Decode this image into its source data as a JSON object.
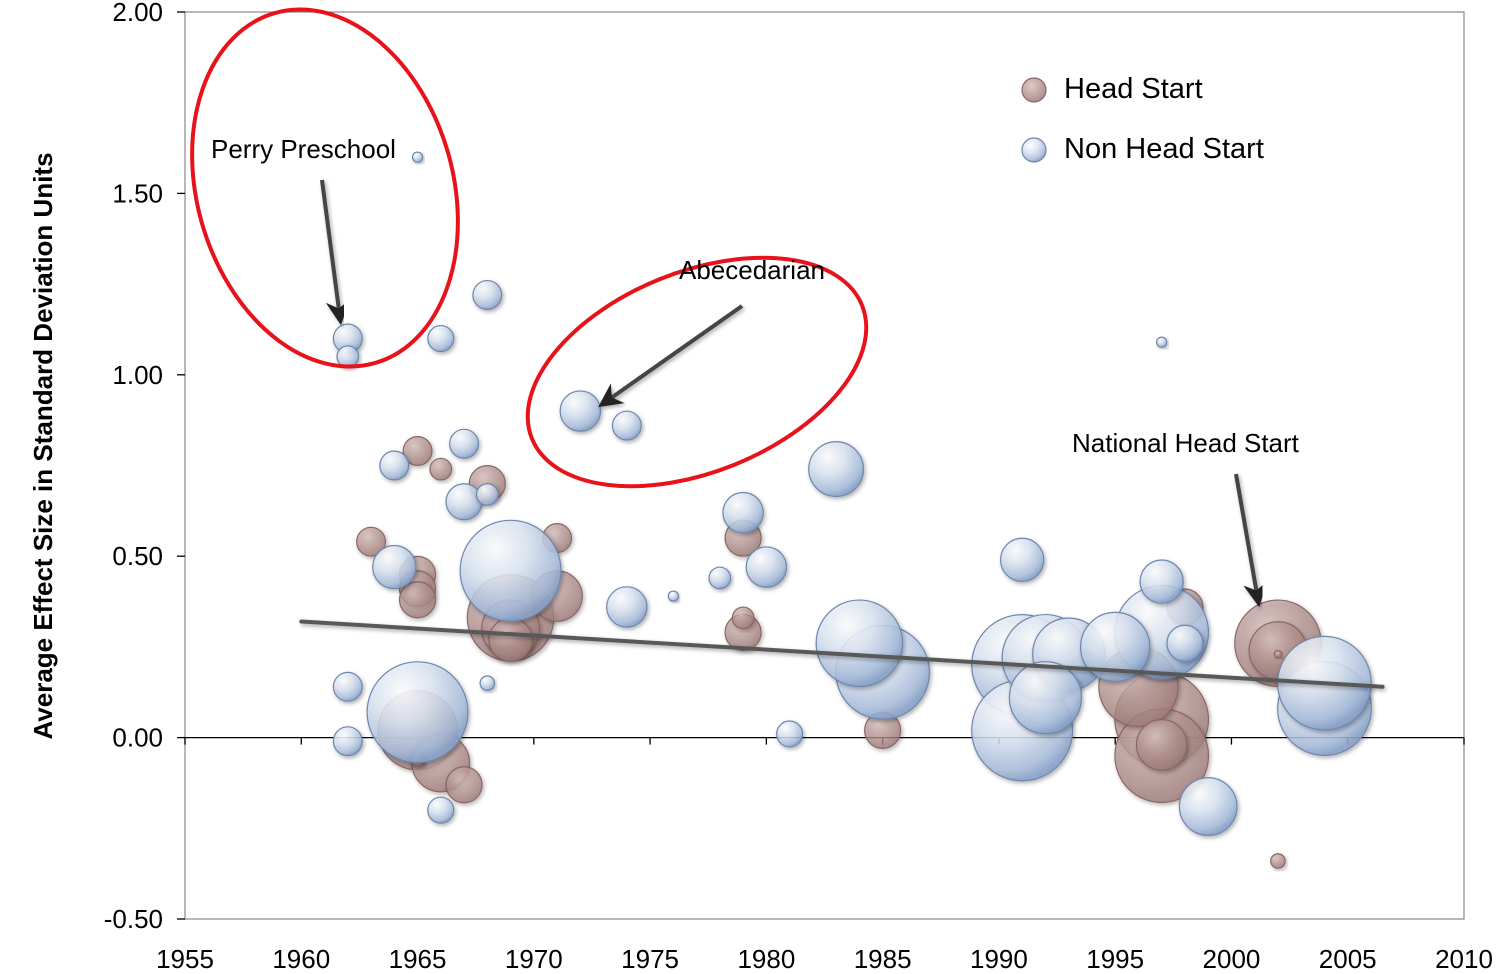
{
  "colors": {
    "head_start": "#b59491",
    "head_start_stroke": "#8a6663",
    "non_head_start": "#c3d3ea",
    "non_head_start_stroke": "#6d87ad",
    "trend": "#595959",
    "highlight": "#e8121b",
    "arrow": "#444444"
  },
  "chart_data": {
    "type": "scatter",
    "ylabel": "Average Effect Size in Standard Deviation Units",
    "xlabel": "",
    "xlim": [
      1955,
      2010
    ],
    "ylim": [
      -0.5,
      2.0
    ],
    "x_ticks": [
      "1955",
      "1960",
      "1965",
      "1970",
      "1975",
      "1980",
      "1985",
      "1990",
      "1995",
      "2000",
      "2005",
      "2010"
    ],
    "y_ticks": [
      "-0.50",
      "0.00",
      "0.50",
      "1.00",
      "1.50",
      "2.00"
    ],
    "grid": false,
    "legend": {
      "position": "top-right",
      "entries": [
        "Head Start",
        "Non Head Start"
      ]
    },
    "trend_line": {
      "x": [
        1960,
        2006.5
      ],
      "y": [
        0.32,
        0.14
      ]
    },
    "annotations": [
      {
        "text": "Perry Preschool",
        "x": 1962,
        "y": 1.1
      },
      {
        "text": "Abecedarian",
        "x": 1972,
        "y": 0.9
      },
      {
        "text": "National Head Start",
        "x": 2002,
        "y": 0.38
      }
    ],
    "series": [
      {
        "name": "Head Start",
        "points": [
          {
            "x": 1963,
            "y": 0.54,
            "size": 2
          },
          {
            "x": 1965,
            "y": 0.79,
            "size": 2
          },
          {
            "x": 1966,
            "y": 0.74,
            "size": 1.5
          },
          {
            "x": 1965,
            "y": 0.45,
            "size": 2.5
          },
          {
            "x": 1965,
            "y": 0.41,
            "size": 2.5
          },
          {
            "x": 1965,
            "y": 0.38,
            "size": 2.5
          },
          {
            "x": 1968,
            "y": 0.7,
            "size": 2.5
          },
          {
            "x": 1965,
            "y": 0.02,
            "size": 5.5
          },
          {
            "x": 1966,
            "y": -0.07,
            "size": 4
          },
          {
            "x": 1967,
            "y": -0.13,
            "size": 2.5
          },
          {
            "x": 1965,
            "y": -0.06,
            "size": 1
          },
          {
            "x": 1971,
            "y": 0.55,
            "size": 2
          },
          {
            "x": 1971,
            "y": 0.39,
            "size": 3.5
          },
          {
            "x": 1969,
            "y": 0.33,
            "size": 6
          },
          {
            "x": 1969,
            "y": 0.3,
            "size": 4
          },
          {
            "x": 1969,
            "y": 0.27,
            "size": 3
          },
          {
            "x": 1979,
            "y": 0.55,
            "size": 2.5
          },
          {
            "x": 1979,
            "y": 0.33,
            "size": 1.5
          },
          {
            "x": 1979,
            "y": 0.29,
            "size": 2.5
          },
          {
            "x": 1985,
            "y": 0.02,
            "size": 2.5
          },
          {
            "x": 1996,
            "y": 0.14,
            "size": 5.5
          },
          {
            "x": 1997,
            "y": 0.05,
            "size": 6.5
          },
          {
            "x": 1997,
            "y": -0.05,
            "size": 6.5
          },
          {
            "x": 1997,
            "y": -0.02,
            "size": 3.5
          },
          {
            "x": 1998,
            "y": 0.36,
            "size": 2.5
          },
          {
            "x": 2002,
            "y": 0.26,
            "size": 6
          },
          {
            "x": 2002,
            "y": 0.24,
            "size": 4
          },
          {
            "x": 2002,
            "y": 0.23,
            "size": 0.5
          },
          {
            "x": 2002,
            "y": -0.34,
            "size": 1
          }
        ]
      },
      {
        "name": "Non Head Start",
        "points": [
          {
            "x": 1965,
            "y": 1.6,
            "size": 0.7
          },
          {
            "x": 1962,
            "y": 1.1,
            "size": 2
          },
          {
            "x": 1962,
            "y": 1.05,
            "size": 1.5
          },
          {
            "x": 1966,
            "y": 1.1,
            "size": 1.8
          },
          {
            "x": 1968,
            "y": 1.22,
            "size": 2
          },
          {
            "x": 1964,
            "y": 0.75,
            "size": 2
          },
          {
            "x": 1967,
            "y": 0.81,
            "size": 2
          },
          {
            "x": 1968,
            "y": 0.67,
            "size": 1.5
          },
          {
            "x": 1967,
            "y": 0.65,
            "size": 2.5
          },
          {
            "x": 1964,
            "y": 0.47,
            "size": 3
          },
          {
            "x": 1969,
            "y": 0.46,
            "size": 7
          },
          {
            "x": 1962,
            "y": 0.14,
            "size": 2
          },
          {
            "x": 1962,
            "y": -0.01,
            "size": 2
          },
          {
            "x": 1965,
            "y": 0.07,
            "size": 7
          },
          {
            "x": 1968,
            "y": 0.15,
            "size": 1
          },
          {
            "x": 1966,
            "y": -0.2,
            "size": 1.8
          },
          {
            "x": 1972,
            "y": 0.9,
            "size": 2.8
          },
          {
            "x": 1974,
            "y": 0.86,
            "size": 2
          },
          {
            "x": 1974,
            "y": 0.36,
            "size": 2.8
          },
          {
            "x": 1976,
            "y": 0.39,
            "size": 0.7
          },
          {
            "x": 1978,
            "y": 0.44,
            "size": 1.5
          },
          {
            "x": 1979,
            "y": 0.62,
            "size": 2.8
          },
          {
            "x": 1980,
            "y": 0.47,
            "size": 2.8
          },
          {
            "x": 1981,
            "y": 0.01,
            "size": 1.8
          },
          {
            "x": 1983,
            "y": 0.74,
            "size": 3.8
          },
          {
            "x": 1984,
            "y": 0.26,
            "size": 6
          },
          {
            "x": 1985,
            "y": 0.18,
            "size": 6.5
          },
          {
            "x": 1991,
            "y": 0.49,
            "size": 3
          },
          {
            "x": 1991,
            "y": 0.2,
            "size": 7
          },
          {
            "x": 1992,
            "y": 0.22,
            "size": 6
          },
          {
            "x": 1993,
            "y": 0.23,
            "size": 5
          },
          {
            "x": 1991,
            "y": 0.02,
            "size": 7
          },
          {
            "x": 1992,
            "y": 0.11,
            "size": 5
          },
          {
            "x": 1995,
            "y": 0.25,
            "size": 4.8
          },
          {
            "x": 1997,
            "y": 0.29,
            "size": 6.5
          },
          {
            "x": 1997,
            "y": 0.43,
            "size": 3
          },
          {
            "x": 1998,
            "y": 0.26,
            "size": 2.5
          },
          {
            "x": 1997,
            "y": 1.09,
            "size": 0.7
          },
          {
            "x": 1999,
            "y": -0.19,
            "size": 4
          },
          {
            "x": 2004,
            "y": 0.08,
            "size": 6.5
          },
          {
            "x": 2004,
            "y": 0.15,
            "size": 6.5
          }
        ]
      }
    ]
  }
}
